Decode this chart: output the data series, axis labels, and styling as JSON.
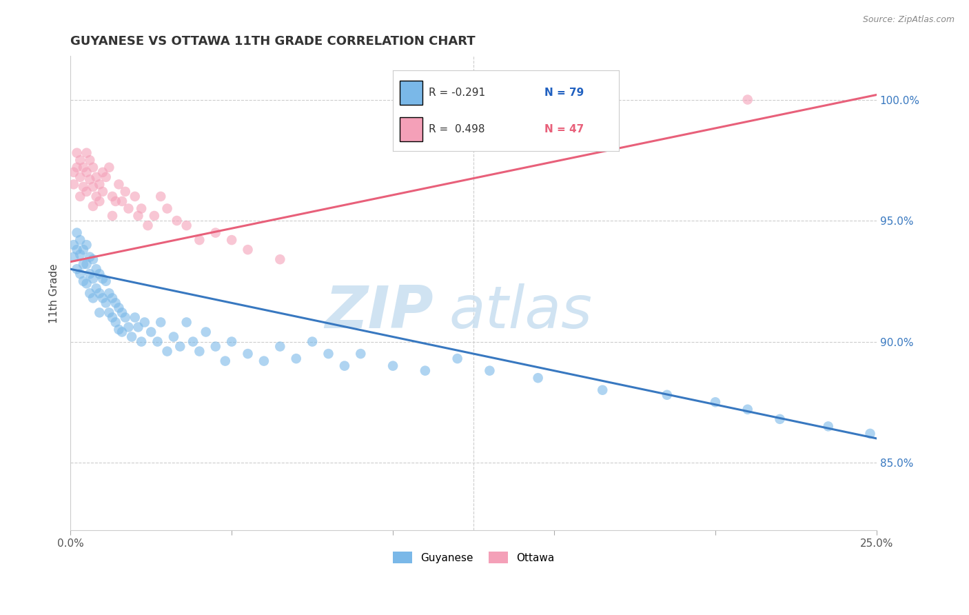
{
  "title": "GUYANESE VS OTTAWA 11TH GRADE CORRELATION CHART",
  "source": "Source: ZipAtlas.com",
  "ylabel": "11th Grade",
  "ylabel_right_ticks": [
    "85.0%",
    "90.0%",
    "95.0%",
    "100.0%"
  ],
  "ylabel_right_vals": [
    0.85,
    0.9,
    0.95,
    1.0
  ],
  "xmin": 0.0,
  "xmax": 0.25,
  "ymin": 0.822,
  "ymax": 1.018,
  "legend_blue_r": "R = -0.291",
  "legend_blue_n": "N = 79",
  "legend_pink_r": "R =  0.498",
  "legend_pink_n": "N = 47",
  "blue_color": "#7ab8e8",
  "pink_color": "#f4a0b8",
  "blue_line_color": "#3878c0",
  "pink_line_color": "#e8607a",
  "n_color": "#2060c0",
  "pink_n_color": "#e8607a",
  "watermark_color": "#c8dff0",
  "blue_trendline_x": [
    0.0,
    0.25
  ],
  "blue_trendline_y": [
    0.93,
    0.86
  ],
  "pink_trendline_x": [
    0.0,
    0.25
  ],
  "pink_trendline_y": [
    0.933,
    1.002
  ],
  "blue_scatter_x": [
    0.001,
    0.001,
    0.002,
    0.002,
    0.002,
    0.003,
    0.003,
    0.003,
    0.004,
    0.004,
    0.004,
    0.005,
    0.005,
    0.005,
    0.006,
    0.006,
    0.006,
    0.007,
    0.007,
    0.007,
    0.008,
    0.008,
    0.009,
    0.009,
    0.009,
    0.01,
    0.01,
    0.011,
    0.011,
    0.012,
    0.012,
    0.013,
    0.013,
    0.014,
    0.014,
    0.015,
    0.015,
    0.016,
    0.016,
    0.017,
    0.018,
    0.019,
    0.02,
    0.021,
    0.022,
    0.023,
    0.025,
    0.027,
    0.028,
    0.03,
    0.032,
    0.034,
    0.036,
    0.038,
    0.04,
    0.042,
    0.045,
    0.048,
    0.05,
    0.055,
    0.06,
    0.065,
    0.07,
    0.075,
    0.08,
    0.085,
    0.09,
    0.1,
    0.11,
    0.12,
    0.13,
    0.145,
    0.165,
    0.185,
    0.2,
    0.21,
    0.22,
    0.235,
    0.248
  ],
  "blue_scatter_y": [
    0.94,
    0.935,
    0.945,
    0.938,
    0.93,
    0.942,
    0.936,
    0.928,
    0.938,
    0.932,
    0.925,
    0.94,
    0.932,
    0.924,
    0.935,
    0.928,
    0.92,
    0.934,
    0.926,
    0.918,
    0.93,
    0.922,
    0.928,
    0.92,
    0.912,
    0.926,
    0.918,
    0.925,
    0.916,
    0.92,
    0.912,
    0.918,
    0.91,
    0.916,
    0.908,
    0.914,
    0.905,
    0.912,
    0.904,
    0.91,
    0.906,
    0.902,
    0.91,
    0.906,
    0.9,
    0.908,
    0.904,
    0.9,
    0.908,
    0.896,
    0.902,
    0.898,
    0.908,
    0.9,
    0.896,
    0.904,
    0.898,
    0.892,
    0.9,
    0.895,
    0.892,
    0.898,
    0.893,
    0.9,
    0.895,
    0.89,
    0.895,
    0.89,
    0.888,
    0.893,
    0.888,
    0.885,
    0.88,
    0.878,
    0.875,
    0.872,
    0.868,
    0.865,
    0.862
  ],
  "pink_scatter_x": [
    0.001,
    0.001,
    0.002,
    0.002,
    0.003,
    0.003,
    0.003,
    0.004,
    0.004,
    0.005,
    0.005,
    0.005,
    0.006,
    0.006,
    0.007,
    0.007,
    0.007,
    0.008,
    0.008,
    0.009,
    0.009,
    0.01,
    0.01,
    0.011,
    0.012,
    0.013,
    0.013,
    0.014,
    0.015,
    0.016,
    0.017,
    0.018,
    0.02,
    0.021,
    0.022,
    0.024,
    0.026,
    0.028,
    0.03,
    0.033,
    0.036,
    0.04,
    0.045,
    0.05,
    0.055,
    0.065,
    0.21
  ],
  "pink_scatter_y": [
    0.97,
    0.965,
    0.978,
    0.972,
    0.975,
    0.968,
    0.96,
    0.972,
    0.964,
    0.978,
    0.97,
    0.962,
    0.975,
    0.967,
    0.972,
    0.964,
    0.956,
    0.968,
    0.96,
    0.965,
    0.958,
    0.97,
    0.962,
    0.968,
    0.972,
    0.96,
    0.952,
    0.958,
    0.965,
    0.958,
    0.962,
    0.955,
    0.96,
    0.952,
    0.955,
    0.948,
    0.952,
    0.96,
    0.955,
    0.95,
    0.948,
    0.942,
    0.945,
    0.942,
    0.938,
    0.934,
    1.0
  ]
}
